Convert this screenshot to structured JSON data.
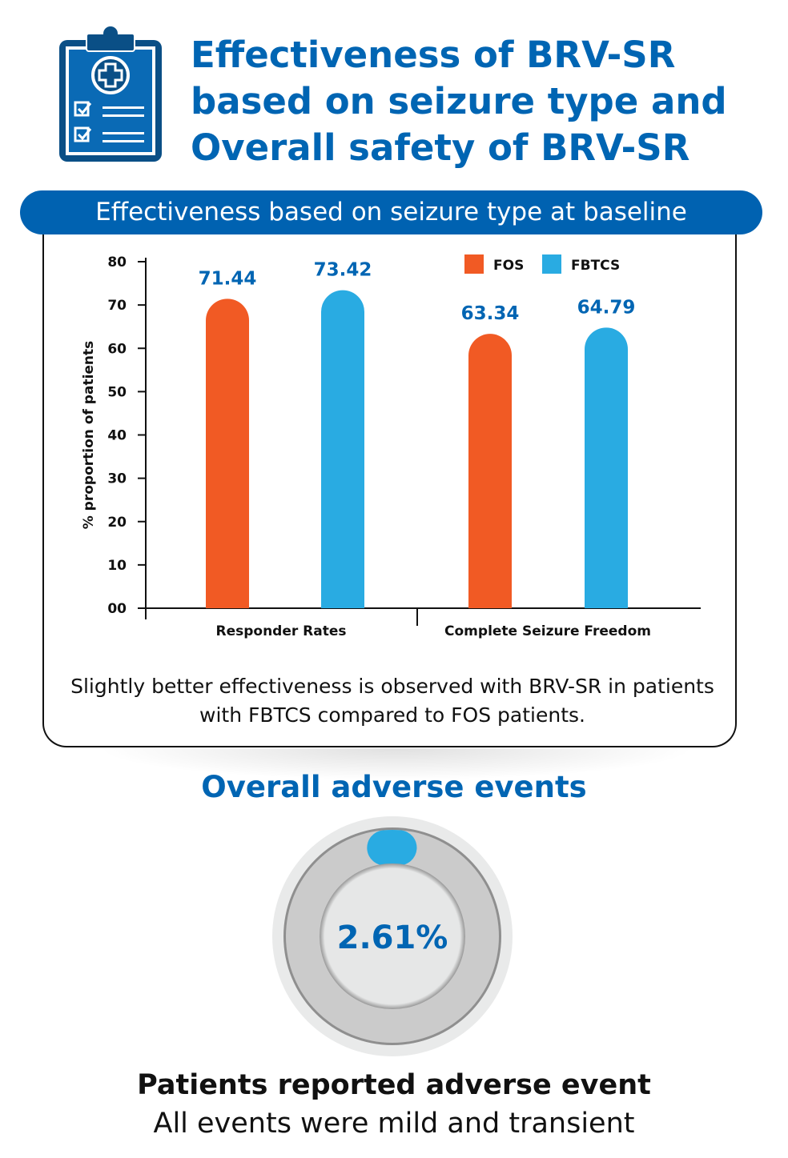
{
  "header": {
    "title": "Effectiveness of BRV-SR based on seizure type and Overall safety of BRV-SR",
    "icon": "clipboard-medical-checklist-icon"
  },
  "banner": {
    "label": "Effectiveness based on seizure type at baseline"
  },
  "chart_data": {
    "type": "bar",
    "title": "Effectiveness based on seizure type at baseline",
    "categories": [
      "Responder Rates",
      "Complete Seizure Freedom"
    ],
    "series": [
      {
        "name": "FOS",
        "color": "#f15a24",
        "values": [
          71.44,
          63.34
        ],
        "labels": [
          "71.44",
          "63.34"
        ]
      },
      {
        "name": "FBTCS",
        "color": "#29abe2",
        "values": [
          73.42,
          64.79
        ],
        "labels": [
          "73.42",
          "64.79"
        ]
      }
    ],
    "ylabel": "% proportion of patients",
    "xlabel": "",
    "ylim": [
      0,
      80
    ],
    "yticks": [
      "00",
      "10",
      "20",
      "30",
      "40",
      "50",
      "60",
      "70",
      "80"
    ],
    "legend": "top-right",
    "grid": false
  },
  "note": "Slightly better effectiveness is observed with BRV-SR in patients with FBTCS compared to FOS patients.",
  "adverse": {
    "heading": "Overall adverse events",
    "value": "2.61%",
    "percent": 2.61,
    "line1": "Patients reported adverse event",
    "line2": "All events were mild and transient"
  }
}
